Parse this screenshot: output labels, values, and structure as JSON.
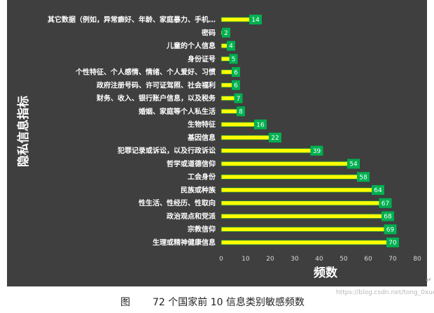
{
  "chart_data": {
    "type": "bar",
    "orientation": "horizontal",
    "categories": [
      "其它数据（例如，异常癖好、年龄、家庭暴力、手机…",
      "密码",
      "儿童的个人信息",
      "身份证号",
      "个性特征、个人感情、情绪、个人爱好、习惯",
      "政府注册号码、许可证驾照、社会福利",
      "财务、收入、银行账户信息，以及税务",
      "婚姻、家庭等个人私生活",
      "生物特征",
      "基因信息",
      "犯罪记录或诉讼，以及行政诉讼",
      "哲学或道德信仰",
      "工会身份",
      "民族或种族",
      "性生活、性经历、性取向",
      "政治观点和党派",
      "宗教信仰",
      "生理或精神健康信息"
    ],
    "values": [
      14,
      2,
      4,
      5,
      6,
      6,
      7,
      8,
      16,
      22,
      39,
      54,
      58,
      64,
      67,
      68,
      69,
      70
    ],
    "xlabel": "频数",
    "ylabel": "隐私信息指标",
    "xlim": [
      0,
      80
    ],
    "xticks": [
      "0",
      "10",
      "20",
      "30",
      "40",
      "50",
      "60",
      "70",
      "80"
    ],
    "grid": false,
    "legend": "none",
    "colors": {
      "background": "#3f3f3f",
      "bar_fill": "#ffff00",
      "bar_edge": "#1f7a3f",
      "label_box": "#00b050",
      "text": "#ffffff"
    }
  },
  "caption": {
    "fig": "图",
    "text": "72 个国家前 10 信息类别敏感频数"
  },
  "watermark": "https://blog.csdn.net/tong_0xue",
  "return_mark": "↵"
}
